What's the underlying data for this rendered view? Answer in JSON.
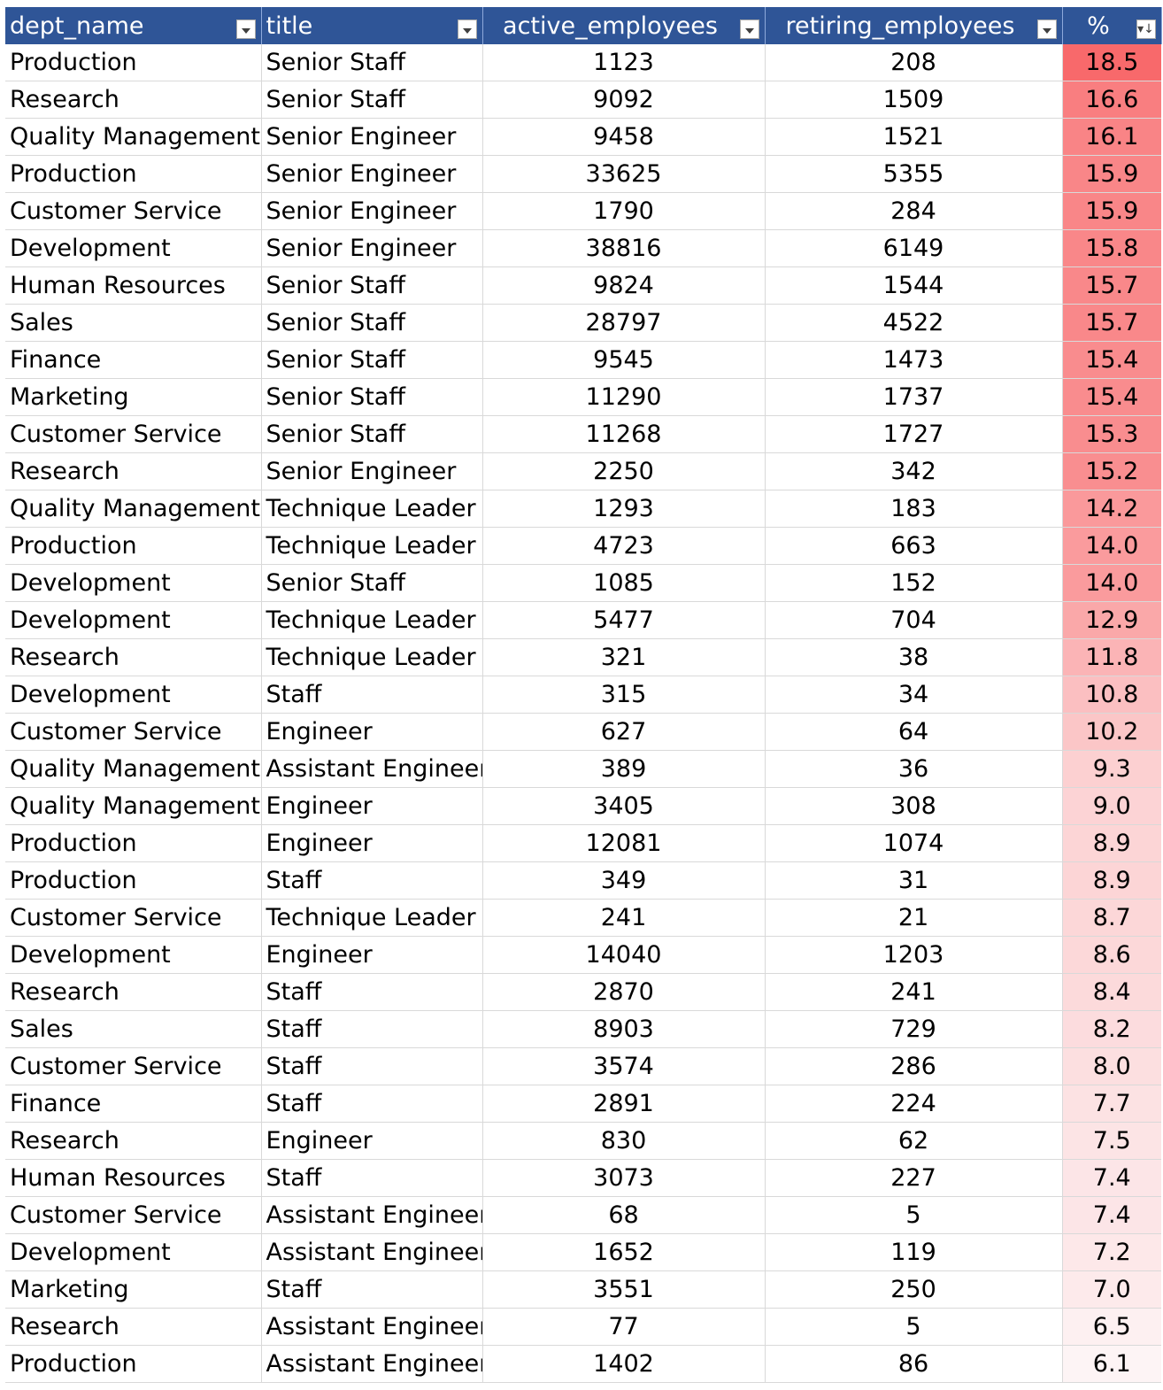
{
  "columns": [
    {
      "key": "dept_name",
      "label": "dept_name",
      "filter": "dropdown"
    },
    {
      "key": "title",
      "label": "title",
      "filter": "dropdown"
    },
    {
      "key": "active_employees",
      "label": "active_employees",
      "filter": "dropdown"
    },
    {
      "key": "retiring_employees",
      "label": "retiring_employees",
      "filter": "dropdown"
    },
    {
      "key": "pct",
      "label": "%",
      "filter": "sorted-descending"
    }
  ],
  "color_scale": {
    "min_color": "#fdf4f5",
    "max_color": "#f8696b"
  },
  "rows": [
    {
      "dept_name": "Production",
      "title": "Senior Staff",
      "active_employees": "1123",
      "retiring_employees": "208",
      "pct": "18.5"
    },
    {
      "dept_name": "Research",
      "title": "Senior Staff",
      "active_employees": "9092",
      "retiring_employees": "1509",
      "pct": "16.6"
    },
    {
      "dept_name": "Quality Management",
      "title": "Senior Engineer",
      "active_employees": "9458",
      "retiring_employees": "1521",
      "pct": "16.1"
    },
    {
      "dept_name": "Production",
      "title": "Senior Engineer",
      "active_employees": "33625",
      "retiring_employees": "5355",
      "pct": "15.9"
    },
    {
      "dept_name": "Customer Service",
      "title": "Senior Engineer",
      "active_employees": "1790",
      "retiring_employees": "284",
      "pct": "15.9"
    },
    {
      "dept_name": "Development",
      "title": "Senior Engineer",
      "active_employees": "38816",
      "retiring_employees": "6149",
      "pct": "15.8"
    },
    {
      "dept_name": "Human Resources",
      "title": "Senior Staff",
      "active_employees": "9824",
      "retiring_employees": "1544",
      "pct": "15.7"
    },
    {
      "dept_name": "Sales",
      "title": "Senior Staff",
      "active_employees": "28797",
      "retiring_employees": "4522",
      "pct": "15.7"
    },
    {
      "dept_name": "Finance",
      "title": "Senior Staff",
      "active_employees": "9545",
      "retiring_employees": "1473",
      "pct": "15.4"
    },
    {
      "dept_name": "Marketing",
      "title": "Senior Staff",
      "active_employees": "11290",
      "retiring_employees": "1737",
      "pct": "15.4"
    },
    {
      "dept_name": "Customer Service",
      "title": "Senior Staff",
      "active_employees": "11268",
      "retiring_employees": "1727",
      "pct": "15.3"
    },
    {
      "dept_name": "Research",
      "title": "Senior Engineer",
      "active_employees": "2250",
      "retiring_employees": "342",
      "pct": "15.2"
    },
    {
      "dept_name": "Quality Management",
      "title": "Technique Leader",
      "active_employees": "1293",
      "retiring_employees": "183",
      "pct": "14.2"
    },
    {
      "dept_name": "Production",
      "title": "Technique Leader",
      "active_employees": "4723",
      "retiring_employees": "663",
      "pct": "14.0"
    },
    {
      "dept_name": "Development",
      "title": "Senior Staff",
      "active_employees": "1085",
      "retiring_employees": "152",
      "pct": "14.0"
    },
    {
      "dept_name": "Development",
      "title": "Technique Leader",
      "active_employees": "5477",
      "retiring_employees": "704",
      "pct": "12.9"
    },
    {
      "dept_name": "Research",
      "title": "Technique Leader",
      "active_employees": "321",
      "retiring_employees": "38",
      "pct": "11.8"
    },
    {
      "dept_name": "Development",
      "title": "Staff",
      "active_employees": "315",
      "retiring_employees": "34",
      "pct": "10.8"
    },
    {
      "dept_name": "Customer Service",
      "title": "Engineer",
      "active_employees": "627",
      "retiring_employees": "64",
      "pct": "10.2"
    },
    {
      "dept_name": "Quality Management",
      "title": "Assistant Engineer",
      "active_employees": "389",
      "retiring_employees": "36",
      "pct": "9.3"
    },
    {
      "dept_name": "Quality Management",
      "title": "Engineer",
      "active_employees": "3405",
      "retiring_employees": "308",
      "pct": "9.0"
    },
    {
      "dept_name": "Production",
      "title": "Engineer",
      "active_employees": "12081",
      "retiring_employees": "1074",
      "pct": "8.9"
    },
    {
      "dept_name": "Production",
      "title": "Staff",
      "active_employees": "349",
      "retiring_employees": "31",
      "pct": "8.9"
    },
    {
      "dept_name": "Customer Service",
      "title": "Technique Leader",
      "active_employees": "241",
      "retiring_employees": "21",
      "pct": "8.7"
    },
    {
      "dept_name": "Development",
      "title": "Engineer",
      "active_employees": "14040",
      "retiring_employees": "1203",
      "pct": "8.6"
    },
    {
      "dept_name": "Research",
      "title": "Staff",
      "active_employees": "2870",
      "retiring_employees": "241",
      "pct": "8.4"
    },
    {
      "dept_name": "Sales",
      "title": "Staff",
      "active_employees": "8903",
      "retiring_employees": "729",
      "pct": "8.2"
    },
    {
      "dept_name": "Customer Service",
      "title": "Staff",
      "active_employees": "3574",
      "retiring_employees": "286",
      "pct": "8.0"
    },
    {
      "dept_name": "Finance",
      "title": "Staff",
      "active_employees": "2891",
      "retiring_employees": "224",
      "pct": "7.7"
    },
    {
      "dept_name": "Research",
      "title": "Engineer",
      "active_employees": "830",
      "retiring_employees": "62",
      "pct": "7.5"
    },
    {
      "dept_name": "Human Resources",
      "title": "Staff",
      "active_employees": "3073",
      "retiring_employees": "227",
      "pct": "7.4"
    },
    {
      "dept_name": "Customer Service",
      "title": "Assistant Engineer",
      "active_employees": "68",
      "retiring_employees": "5",
      "pct": "7.4"
    },
    {
      "dept_name": "Development",
      "title": "Assistant Engineer",
      "active_employees": "1652",
      "retiring_employees": "119",
      "pct": "7.2"
    },
    {
      "dept_name": "Marketing",
      "title": "Staff",
      "active_employees": "3551",
      "retiring_employees": "250",
      "pct": "7.0"
    },
    {
      "dept_name": "Research",
      "title": "Assistant Engineer",
      "active_employees": "77",
      "retiring_employees": "5",
      "pct": "6.5"
    },
    {
      "dept_name": "Production",
      "title": "Assistant Engineer",
      "active_employees": "1402",
      "retiring_employees": "86",
      "pct": "6.1"
    }
  ]
}
